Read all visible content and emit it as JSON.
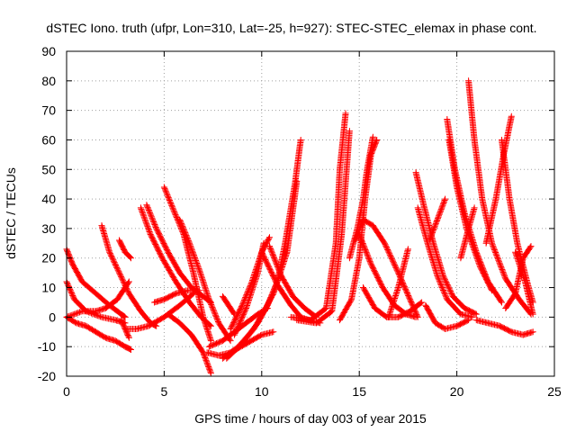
{
  "chart_data": {
    "type": "scatter",
    "title": "dSTEC Iono. truth (ufpr, Lon=310, Lat=-25, h=927): STEC-STEC_elemax in phase cont.",
    "xlabel": "GPS time / hours of day 003 of year 2015",
    "ylabel": "dSTEC  / TECUs",
    "xlim": [
      0,
      25
    ],
    "ylim": [
      -20,
      90
    ],
    "xticks": [
      0,
      5,
      10,
      15,
      20,
      25
    ],
    "yticks": [
      -20,
      -10,
      0,
      10,
      20,
      30,
      40,
      50,
      60,
      70,
      80,
      90
    ],
    "grid": true,
    "marker": "+",
    "color": "#ff0000",
    "series": [
      {
        "x": [
          0.0,
          0.5,
          1.0,
          1.5,
          2.0,
          2.5,
          3.0,
          3.3
        ],
        "y": [
          0,
          -2,
          -3,
          -5,
          -7,
          -8,
          -10,
          -11
        ]
      },
      {
        "x": [
          0.0,
          0.3,
          0.8,
          1.5,
          2.2,
          2.8,
          3.0
        ],
        "y": [
          23,
          18,
          12,
          8,
          4,
          1,
          0
        ]
      },
      {
        "x": [
          0.0,
          0.4,
          1.0,
          1.8,
          2.5,
          3.0
        ],
        "y": [
          12,
          6,
          2,
          0,
          -1,
          -2
        ]
      },
      {
        "x": [
          0.0,
          0.8,
          1.5,
          2.0,
          2.6,
          3.2
        ],
        "y": [
          0,
          2,
          2,
          3,
          6,
          12
        ]
      },
      {
        "x": [
          1.8,
          2.2,
          2.7,
          3.2,
          3.8,
          4.3,
          4.6
        ],
        "y": [
          31,
          22,
          15,
          8,
          2,
          -2,
          -3
        ]
      },
      {
        "x": [
          2.7,
          3.0,
          3.3
        ],
        "y": [
          26,
          22,
          20
        ]
      },
      {
        "x": [
          2.8,
          3.0,
          3.2
        ],
        "y": [
          -1,
          -4,
          -7
        ]
      },
      {
        "x": [
          3.1,
          3.6,
          4.2,
          5.0,
          5.8,
          6.5
        ],
        "y": [
          -4,
          -4,
          -3,
          0,
          4,
          8
        ]
      },
      {
        "x": [
          3.8,
          4.3,
          4.9,
          5.6,
          6.3,
          6.9,
          7.4
        ],
        "y": [
          37,
          28,
          20,
          12,
          5,
          0,
          -3
        ]
      },
      {
        "x": [
          4.1,
          4.6,
          5.2,
          5.8,
          6.4,
          7.0,
          7.4
        ],
        "y": [
          38,
          30,
          22,
          15,
          10,
          7,
          5
        ]
      },
      {
        "x": [
          4.5,
          5.0,
          5.6,
          6.2,
          6.8
        ],
        "y": [
          5,
          6,
          8,
          9,
          9
        ]
      },
      {
        "x": [
          5.0,
          5.5,
          6.0,
          6.5,
          7.0,
          7.4
        ],
        "y": [
          44,
          36,
          28,
          15,
          0,
          -8
        ]
      },
      {
        "x": [
          5.2,
          5.8,
          6.4,
          7.0,
          7.4
        ],
        "y": [
          1,
          -2,
          -6,
          -12,
          -19
        ]
      },
      {
        "x": [
          5.8,
          6.3,
          6.8,
          7.3,
          7.8,
          8.4
        ],
        "y": [
          33,
          25,
          16,
          6,
          -2,
          -8
        ]
      },
      {
        "x": [
          7.2,
          7.8,
          8.4,
          9.2,
          10.0,
          10.6
        ],
        "y": [
          -12,
          -13,
          -12,
          -9,
          -6,
          -5
        ]
      },
      {
        "x": [
          7.3,
          8.0,
          8.6,
          9.2,
          9.8,
          10.3
        ],
        "y": [
          -10,
          -8,
          -5,
          -2,
          1,
          3
        ]
      },
      {
        "x": [
          8.0,
          8.3,
          8.6
        ],
        "y": [
          7,
          4,
          1
        ]
      },
      {
        "x": [
          8.0,
          8.8,
          9.6,
          10.3,
          10.8,
          11.2,
          11.7,
          12.0
        ],
        "y": [
          -14,
          -10,
          -4,
          4,
          12,
          25,
          45,
          60
        ]
      },
      {
        "x": [
          8.2,
          9.0,
          9.8,
          10.6,
          11.3,
          11.8
        ],
        "y": [
          -14,
          -9,
          -2,
          8,
          22,
          46
        ]
      },
      {
        "x": [
          8.4,
          9.0,
          9.5,
          10.0,
          10.4
        ],
        "y": [
          -4,
          4,
          12,
          22,
          27
        ]
      },
      {
        "x": [
          8.6,
          9.2,
          9.8,
          10.1
        ],
        "y": [
          -6,
          3,
          15,
          25
        ]
      },
      {
        "x": [
          10.0,
          10.8,
          11.5,
          12.0,
          12.4,
          13.0
        ],
        "y": [
          22,
          11,
          4,
          0,
          -1,
          -2
        ]
      },
      {
        "x": [
          10.4,
          11.0,
          11.6,
          12.2,
          12.8
        ],
        "y": [
          24,
          14,
          7,
          3,
          0
        ]
      },
      {
        "x": [
          11.5,
          12.5,
          13.3,
          13.8,
          14.0,
          14.3
        ],
        "y": [
          0,
          -1,
          3,
          25,
          50,
          69
        ]
      },
      {
        "x": [
          11.8,
          12.8,
          13.6,
          14.1,
          14.5
        ],
        "y": [
          -1,
          -2,
          2,
          28,
          63
        ]
      },
      {
        "x": [
          14.0,
          14.6,
          15.0,
          15.3,
          15.6,
          15.9
        ],
        "y": [
          -1,
          6,
          20,
          40,
          55,
          60
        ]
      },
      {
        "x": [
          14.5,
          14.9,
          15.2,
          15.4,
          15.7
        ],
        "y": [
          20,
          30,
          40,
          50,
          61
        ]
      },
      {
        "x": [
          14.8,
          15.2,
          15.7,
          16.3,
          17.0,
          17.6,
          18.0
        ],
        "y": [
          26,
          33,
          31,
          25,
          15,
          6,
          0
        ]
      },
      {
        "x": [
          15.0,
          15.6,
          16.2,
          16.8,
          17.4,
          17.9
        ],
        "y": [
          28,
          18,
          10,
          4,
          1,
          0
        ]
      },
      {
        "x": [
          15.2,
          15.8,
          16.4,
          17.0,
          17.6,
          18.2
        ],
        "y": [
          10,
          3,
          0,
          0,
          2,
          5
        ]
      },
      {
        "x": [
          16.5,
          17.0,
          17.5
        ],
        "y": [
          0,
          10,
          23
        ]
      },
      {
        "x": [
          17.9,
          18.3,
          18.8,
          19.3,
          19.8,
          20.4,
          21.0
        ],
        "y": [
          49,
          38,
          25,
          14,
          7,
          3,
          1
        ]
      },
      {
        "x": [
          18.0,
          18.5,
          19.0,
          19.5,
          20.2,
          20.8
        ],
        "y": [
          37,
          25,
          14,
          6,
          1,
          0
        ]
      },
      {
        "x": [
          18.4,
          18.9,
          19.4,
          20.0,
          20.6
        ],
        "y": [
          4,
          -2,
          -4,
          -3,
          -1
        ]
      },
      {
        "x": [
          18.6,
          19.0,
          19.4
        ],
        "y": [
          26,
          33,
          40
        ]
      },
      {
        "x": [
          19.5,
          19.9,
          20.4,
          21.0,
          21.6,
          22.3
        ],
        "y": [
          67,
          50,
          35,
          22,
          12,
          5
        ]
      },
      {
        "x": [
          19.6,
          20.0,
          20.5,
          21.2,
          21.8
        ],
        "y": [
          60,
          44,
          30,
          17,
          9
        ]
      },
      {
        "x": [
          20.2,
          20.6,
          20.9
        ],
        "y": [
          20,
          30,
          37
        ]
      },
      {
        "x": [
          20.6,
          20.9,
          21.3,
          21.8,
          22.5,
          23.2,
          23.8
        ],
        "y": [
          80,
          60,
          40,
          25,
          13,
          6,
          1
        ]
      },
      {
        "x": [
          21.0,
          21.6,
          22.2,
          22.8,
          23.4,
          23.9
        ],
        "y": [
          -1,
          -2,
          -3,
          -5,
          -6,
          -5
        ]
      },
      {
        "x": [
          21.5,
          22.0,
          22.4,
          22.8
        ],
        "y": [
          25,
          40,
          55,
          68
        ]
      },
      {
        "x": [
          22.3,
          22.7,
          23.1,
          23.6,
          23.9
        ],
        "y": [
          60,
          40,
          25,
          12,
          5
        ]
      },
      {
        "x": [
          22.5,
          23.0,
          23.4,
          23.8
        ],
        "y": [
          3,
          8,
          20,
          24
        ]
      },
      {
        "x": [
          23.0,
          23.5,
          23.9
        ],
        "y": [
          22,
          12,
          1
        ]
      }
    ]
  }
}
